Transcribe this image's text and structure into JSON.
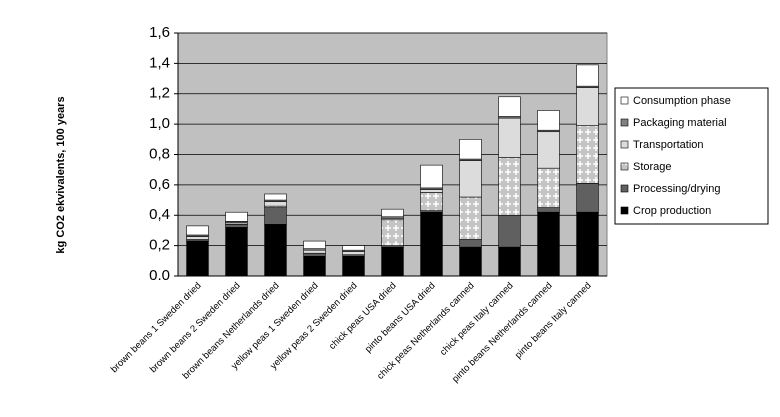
{
  "chart_data": {
    "type": "stacked-bar",
    "y_label": "kg CO2 ekvivalents, 100 years",
    "categories": [
      "brown beans 1 Sweden dried",
      "brown beans 2 Sweden dried",
      "brown beans Netherlands dried",
      "yellow peas 1 Sweden dried",
      "yellow peas 2 Sweden dried",
      "chick peas USA dried",
      "pinto beans USA dried",
      "chick peas Netherlands canned",
      "chick peas Italy canned",
      "pinto beans Netherlands canned",
      "pinto beans Italy canned"
    ],
    "series": [
      {
        "name": "Crop production",
        "color": "#000000",
        "values": [
          0.23,
          0.32,
          0.34,
          0.13,
          0.13,
          0.19,
          0.42,
          0.19,
          0.19,
          0.42,
          0.42
        ]
      },
      {
        "name": "Processing/drying",
        "color": "#606060",
        "values": [
          0.01,
          0.02,
          0.11,
          0.02,
          0.01,
          0.01,
          0.01,
          0.05,
          0.21,
          0.03,
          0.19
        ]
      },
      {
        "name": "Storage",
        "color": "#c4c4c4",
        "pattern": "grid",
        "values": [
          0,
          0,
          0.01,
          0,
          0,
          0.17,
          0.12,
          0.28,
          0.38,
          0.26,
          0.38
        ]
      },
      {
        "name": "Transportation",
        "color": "#dcdcdc",
        "values": [
          0.02,
          0.01,
          0.03,
          0.02,
          0.02,
          0.01,
          0.02,
          0.24,
          0.26,
          0.24,
          0.25
        ]
      },
      {
        "name": "Packaging material",
        "color": "#808080",
        "values": [
          0.01,
          0.01,
          0.01,
          0.01,
          0.01,
          0.01,
          0.01,
          0.01,
          0.01,
          0.01,
          0.01
        ]
      },
      {
        "name": "Consumption phase",
        "color": "#ffffff",
        "values": [
          0.06,
          0.06,
          0.04,
          0.05,
          0.03,
          0.05,
          0.15,
          0.13,
          0.13,
          0.13,
          0.14
        ]
      }
    ],
    "ylim": [
      0,
      1.6
    ],
    "yticks": [
      {
        "value": 0,
        "label": "0.0"
      },
      {
        "value": 0.2,
        "label": "0,2"
      },
      {
        "value": 0.4,
        "label": "0,4"
      },
      {
        "value": 0.6,
        "label": "0,6"
      },
      {
        "value": 0.8,
        "label": "0,8"
      },
      {
        "value": 1.0,
        "label": "1,0"
      },
      {
        "value": 1.2,
        "label": "1,2"
      },
      {
        "value": 1.4,
        "label": "1,4"
      },
      {
        "value": 1.6,
        "label": "1,6"
      }
    ],
    "grid": true,
    "plot_background": "#c0c0c0",
    "legend": "right"
  }
}
